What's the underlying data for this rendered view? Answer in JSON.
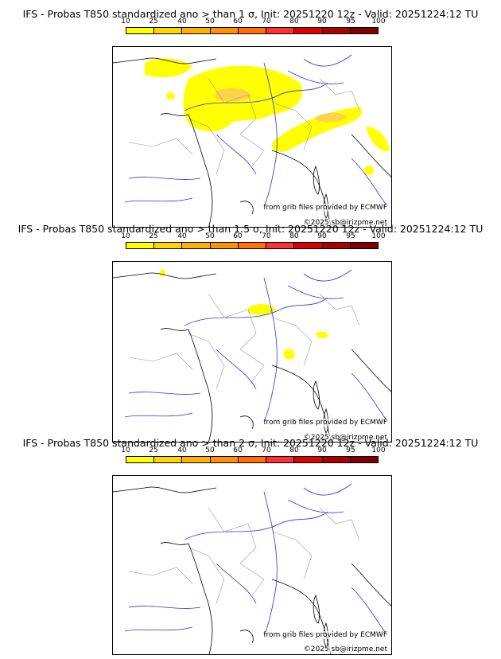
{
  "colorbar": {
    "ticks": [
      "10",
      "25",
      "40",
      "50",
      "60",
      "70",
      "80",
      "90",
      "95",
      "100"
    ],
    "colors": [
      "#ffff00",
      "#ffd700",
      "#ffb000",
      "#ff9000",
      "#ff7000",
      "#ff3030",
      "#dd0000",
      "#aa0000",
      "#800000",
      "#550000"
    ]
  },
  "credits": {
    "source": "from grib files provided by ECMWF",
    "copyright": "©2025 sb@irizpme.net"
  },
  "panels": [
    {
      "title": "IFS - Probas T850  standardized ano > than 1 σ, Init: 20251220 12z - Valid: 20251224:12 TU"
    },
    {
      "title": "IFS - Probas T850  standardized ano > than 1.5 σ, Init: 20251220 12z - Valid: 20251224:12 TU"
    },
    {
      "title": "IFS - Probas T850  standardized ano > than 2 σ, Init: 20251220 12z - Valid: 20251224:12 TU"
    }
  ]
}
